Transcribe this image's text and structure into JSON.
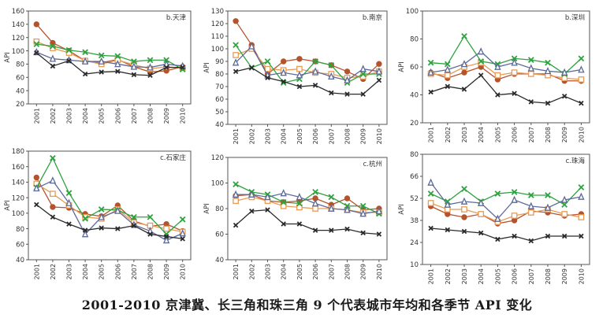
{
  "caption": "2001-2010 京津冀、长三角和珠三角 9 个代表城市年均和各季节 API 变化",
  "series_colors": [
    "#b5532c",
    "#e79b55",
    "#2ea23f",
    "#5d6a99",
    "#2b2b2b"
  ],
  "chart_data": [
    {
      "type": "line",
      "title": "b.天津",
      "ylabel": "API",
      "ylim": [
        20,
        160
      ],
      "yticks": [
        20,
        40,
        60,
        80,
        100,
        120,
        140,
        160
      ],
      "x": [
        "2001",
        "2002",
        "2003",
        "2004",
        "2005",
        "2006",
        "2007",
        "2008",
        "2009",
        "2010"
      ],
      "series": [
        {
          "values": [
            140,
            112,
            100,
            85,
            82,
            87,
            76,
            68,
            70,
            76
          ]
        },
        {
          "values": [
            114,
            104,
            97,
            85,
            80,
            86,
            79,
            73,
            76,
            74
          ]
        },
        {
          "values": [
            110,
            107,
            101,
            98,
            93,
            92,
            84,
            86,
            86,
            72
          ]
        },
        {
          "values": [
            98,
            88,
            86,
            84,
            84,
            80,
            76,
            75,
            80,
            77
          ]
        },
        {
          "values": [
            97,
            77,
            85,
            65,
            68,
            69,
            64,
            63,
            75,
            75
          ]
        }
      ]
    },
    {
      "type": "line",
      "title": "b.南京",
      "ylabel": "API",
      "ylim": [
        40,
        130
      ],
      "yticks": [
        40,
        50,
        60,
        70,
        80,
        90,
        100,
        110,
        120,
        130
      ],
      "x": [
        "2001",
        "2002",
        "2003",
        "2004",
        "2005",
        "2006",
        "2007",
        "2008",
        "2009",
        "2010"
      ],
      "series": [
        {
          "values": [
            122,
            103,
            80,
            90,
            92,
            90,
            87,
            82,
            76,
            88
          ]
        },
        {
          "values": [
            95,
            100,
            84,
            83,
            84,
            81,
            80,
            77,
            78,
            82
          ]
        },
        {
          "values": [
            103,
            85,
            90,
            73,
            76,
            90,
            87,
            73,
            80,
            80
          ]
        },
        {
          "values": [
            89,
            102,
            79,
            81,
            79,
            82,
            78,
            75,
            84,
            82
          ]
        },
        {
          "values": [
            82,
            85,
            77,
            74,
            70,
            71,
            65,
            64,
            64,
            75
          ]
        }
      ]
    },
    {
      "type": "line",
      "title": "b.深圳",
      "ylabel": "API",
      "ylim": [
        20,
        100
      ],
      "yticks": [
        20,
        40,
        60,
        80,
        100
      ],
      "x": [
        "2001",
        "2002",
        "2003",
        "2004",
        "2005",
        "2006",
        "2007",
        "2008",
        "2009",
        "2010"
      ],
      "series": [
        {
          "values": [
            56,
            52,
            56,
            60,
            51,
            55,
            55,
            55,
            50,
            50
          ]
        },
        {
          "values": [
            55,
            54,
            60,
            63,
            54,
            56,
            55,
            54,
            52,
            51
          ]
        },
        {
          "values": [
            63,
            62,
            82,
            64,
            62,
            66,
            65,
            63,
            55,
            66
          ]
        },
        {
          "values": [
            56,
            58,
            62,
            71,
            60,
            63,
            59,
            57,
            56,
            58
          ]
        },
        {
          "values": [
            42,
            46,
            44,
            54,
            40,
            41,
            35,
            34,
            39,
            34
          ]
        }
      ]
    },
    {
      "type": "line",
      "title": "c.石家庄",
      "ylabel": "API",
      "ylim": [
        40,
        180
      ],
      "yticks": [
        40,
        60,
        80,
        100,
        120,
        140,
        160,
        180
      ],
      "x": [
        "2001",
        "2002",
        "2003",
        "2004",
        "2005",
        "2006",
        "2007",
        "2008",
        "2009",
        "2010"
      ],
      "series": [
        {
          "values": [
            146,
            108,
            107,
            99,
            96,
            110,
            90,
            83,
            86,
            77
          ]
        },
        {
          "values": [
            138,
            125,
            110,
            95,
            93,
            105,
            88,
            84,
            80,
            76
          ]
        },
        {
          "values": [
            133,
            171,
            126,
            93,
            105,
            104,
            95,
            95,
            73,
            92
          ]
        },
        {
          "values": [
            132,
            142,
            113,
            73,
            95,
            103,
            85,
            77,
            65,
            74
          ]
        },
        {
          "values": [
            111,
            95,
            86,
            78,
            81,
            80,
            84,
            73,
            70,
            67
          ]
        }
      ]
    },
    {
      "type": "line",
      "title": "c.杭州",
      "ylabel": "API",
      "ylim": [
        40,
        120
      ],
      "yticks": [
        40,
        60,
        80,
        100,
        120
      ],
      "x": [
        "2001",
        "2002",
        "2003",
        "2004",
        "2005",
        "2006",
        "2007",
        "2008",
        "2009",
        "2010"
      ],
      "series": [
        {
          "values": [
            90,
            91,
            86,
            85,
            86,
            88,
            83,
            88,
            79,
            80
          ]
        },
        {
          "values": [
            86,
            89,
            86,
            82,
            81,
            80,
            80,
            79,
            77,
            77
          ]
        },
        {
          "values": [
            99,
            93,
            91,
            85,
            84,
            93,
            89,
            82,
            82,
            76
          ]
        },
        {
          "values": [
            91,
            91,
            89,
            92,
            89,
            84,
            80,
            79,
            76,
            78
          ]
        },
        {
          "values": [
            67,
            78,
            79,
            68,
            68,
            63,
            63,
            64,
            61,
            60
          ]
        }
      ]
    },
    {
      "type": "line",
      "title": "c.珠海",
      "ylabel": "API",
      "ylim": [
        10,
        80
      ],
      "yticks": [
        10,
        24,
        38,
        52,
        66,
        80
      ],
      "x": [
        "2001",
        "2002",
        "2003",
        "2004",
        "2005",
        "2006",
        "2007",
        "2008",
        "2009",
        "2010"
      ],
      "series": [
        {
          "values": [
            47,
            42,
            40,
            42,
            36,
            38,
            44,
            43,
            41,
            42
          ]
        },
        {
          "values": [
            49,
            45,
            45,
            42,
            37,
            41,
            43,
            45,
            42,
            40
          ]
        },
        {
          "values": [
            55,
            50,
            58,
            50,
            55,
            56,
            54,
            54,
            48,
            59
          ]
        },
        {
          "values": [
            62,
            48,
            50,
            49,
            39,
            51,
            47,
            46,
            51,
            53
          ]
        },
        {
          "values": [
            33,
            32,
            31,
            30,
            26,
            28,
            25,
            28,
            28,
            28
          ]
        }
      ]
    }
  ]
}
